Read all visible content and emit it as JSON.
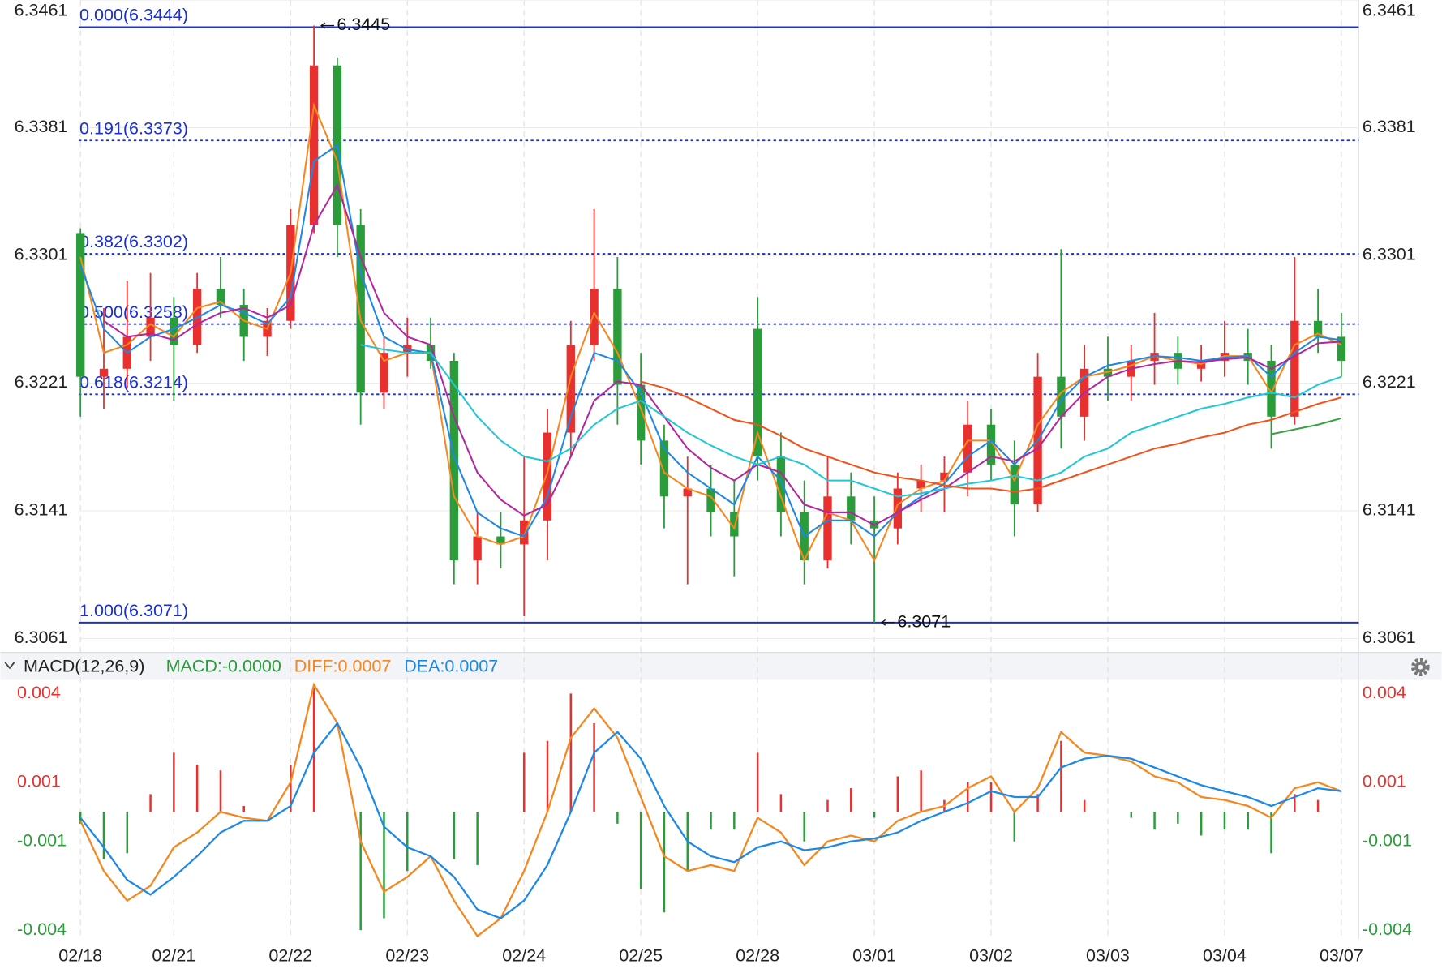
{
  "chart_data": [
    {
      "type": "candlestick",
      "categories": [
        "02/18",
        null,
        null,
        null,
        "02/21",
        null,
        null,
        null,
        null,
        "02/22",
        null,
        null,
        null,
        null,
        "02/23",
        null,
        null,
        null,
        null,
        "02/24",
        null,
        null,
        null,
        null,
        "02/25",
        null,
        null,
        null,
        null,
        "02/28",
        null,
        null,
        null,
        null,
        "03/01",
        null,
        null,
        null,
        null,
        "03/02",
        null,
        null,
        null,
        null,
        "03/03",
        null,
        null,
        null,
        null,
        "03/04",
        null,
        null,
        null,
        null,
        "03/07"
      ],
      "open": [
        6.3315,
        6.3225,
        6.323,
        6.325,
        6.3262,
        6.3245,
        6.328,
        6.327,
        6.325,
        6.326,
        6.332,
        6.342,
        6.332,
        6.3215,
        6.324,
        6.3245,
        6.3235,
        6.311,
        6.3125,
        6.312,
        6.3135,
        6.319,
        6.3245,
        6.328,
        6.322,
        6.3185,
        6.315,
        6.3155,
        6.314,
        6.3255,
        6.3175,
        6.314,
        6.311,
        6.315,
        6.3135,
        6.313,
        6.3155,
        6.316,
        6.3165,
        6.3195,
        6.317,
        6.3145,
        6.3225,
        6.32,
        6.323,
        6.3225,
        6.3235,
        6.324,
        6.323,
        6.3235,
        6.324,
        6.3235,
        6.32,
        6.326,
        6.325
      ],
      "high": [
        6.3318,
        6.3268,
        6.3285,
        6.329,
        6.3275,
        6.329,
        6.33,
        6.328,
        6.3268,
        6.333,
        6.3445,
        6.3425,
        6.333,
        6.325,
        6.3262,
        6.3262,
        6.324,
        6.314,
        6.314,
        6.3175,
        6.3205,
        6.326,
        6.333,
        6.33,
        6.324,
        6.3195,
        6.3175,
        6.317,
        6.316,
        6.3275,
        6.319,
        6.316,
        6.3175,
        6.3165,
        6.315,
        6.3165,
        6.317,
        6.3175,
        6.321,
        6.3205,
        6.3185,
        6.324,
        6.3305,
        6.3245,
        6.325,
        6.3245,
        6.3265,
        6.325,
        6.3245,
        6.326,
        6.3255,
        6.3245,
        6.33,
        6.328,
        6.3265
      ],
      "low": [
        6.32,
        6.3205,
        6.3218,
        6.3235,
        6.321,
        6.324,
        6.3262,
        6.3235,
        6.3238,
        6.3255,
        6.3315,
        6.33,
        6.3195,
        6.3205,
        6.3225,
        6.323,
        6.3095,
        6.3095,
        6.3105,
        6.3075,
        6.311,
        6.3175,
        6.3235,
        6.3195,
        6.317,
        6.313,
        6.3095,
        6.3125,
        6.31,
        6.316,
        6.3125,
        6.3095,
        6.3105,
        6.312,
        6.3071,
        6.312,
        6.314,
        6.314,
        6.315,
        6.316,
        6.3125,
        6.314,
        6.318,
        6.3185,
        6.321,
        6.321,
        6.322,
        6.322,
        6.3222,
        6.3225,
        6.322,
        6.318,
        6.3195,
        6.324,
        6.3225
      ],
      "close": [
        6.3225,
        6.323,
        6.325,
        6.3262,
        6.3245,
        6.328,
        6.327,
        6.325,
        6.326,
        6.332,
        6.342,
        6.332,
        6.3215,
        6.324,
        6.3245,
        6.3235,
        6.311,
        6.3125,
        6.312,
        6.3135,
        6.319,
        6.3245,
        6.328,
        6.322,
        6.3185,
        6.315,
        6.3155,
        6.314,
        6.3125,
        6.3175,
        6.314,
        6.311,
        6.315,
        6.3135,
        6.313,
        6.3155,
        6.316,
        6.3165,
        6.3195,
        6.317,
        6.3145,
        6.3225,
        6.32,
        6.323,
        6.3225,
        6.3235,
        6.324,
        6.323,
        6.3235,
        6.324,
        6.3235,
        6.32,
        6.326,
        6.325,
        6.3235
      ],
      "up_color": "#e8312f",
      "down_color": "#2a9d3a",
      "lines": [
        {
          "color": "#f5871f",
          "values": [
            6.33,
            6.324,
            6.3245,
            6.3258,
            6.325,
            6.3268,
            6.3272,
            6.326,
            6.3255,
            6.329,
            6.3395,
            6.336,
            6.326,
            6.3235,
            6.324,
            6.324,
            6.315,
            6.3125,
            6.312,
            6.3125,
            6.3165,
            6.3225,
            6.3265,
            6.324,
            6.3205,
            6.3165,
            6.3155,
            6.315,
            6.313,
            6.319,
            6.315,
            6.311,
            6.314,
            6.3135,
            6.311,
            6.3145,
            6.3155,
            6.316,
            6.3185,
            6.3185,
            6.316,
            6.3195,
            6.3215,
            6.3225,
            6.3228,
            6.3232,
            6.3238,
            6.3235,
            6.3233,
            6.3238,
            6.3238,
            6.3215,
            6.3245,
            6.3252,
            6.3245
          ]
        },
        {
          "color": "#1e88e5",
          "values": [
            6.3295,
            6.3255,
            6.324,
            6.325,
            6.3255,
            6.3262,
            6.327,
            6.3265,
            6.3258,
            6.3275,
            6.336,
            6.337,
            6.329,
            6.325,
            6.3242,
            6.324,
            6.3175,
            6.314,
            6.313,
            6.3125,
            6.315,
            6.32,
            6.324,
            6.3235,
            6.3215,
            6.318,
            6.3165,
            6.3155,
            6.3145,
            6.3175,
            6.316,
            6.3125,
            6.3135,
            6.3135,
            6.3125,
            6.314,
            6.315,
            6.3158,
            6.3175,
            6.3185,
            6.317,
            6.3185,
            6.321,
            6.3225,
            6.3232,
            6.3235,
            6.3238,
            6.3237,
            6.3235,
            6.3237,
            6.3238,
            6.3225,
            6.324,
            6.325,
            6.3248
          ]
        },
        {
          "color": "#b0279e",
          "values": [
            null,
            6.326,
            6.325,
            6.3252,
            6.3248,
            6.3258,
            6.3265,
            6.3268,
            6.3262,
            6.327,
            6.332,
            6.3345,
            6.33,
            6.3265,
            6.325,
            6.3245,
            6.32,
            6.3165,
            6.3148,
            6.3138,
            6.3145,
            6.3175,
            6.321,
            6.3222,
            6.322,
            6.32,
            6.318,
            6.3168,
            6.316,
            6.317,
            6.3165,
            6.3145,
            6.314,
            6.314,
            6.3132,
            6.314,
            6.3148,
            6.3155,
            6.3165,
            6.3175,
            6.3172,
            6.318,
            6.32,
            6.3215,
            6.3225,
            6.323,
            6.3233,
            6.3235,
            6.3234,
            6.3236,
            6.3237,
            6.323,
            6.3238,
            6.3246,
            6.3247
          ]
        },
        {
          "color": "#22c7d6",
          "values": [
            null,
            null,
            null,
            null,
            null,
            null,
            null,
            null,
            null,
            null,
            null,
            null,
            6.3245,
            6.3242,
            6.324,
            6.324,
            6.322,
            6.32,
            6.3185,
            6.3175,
            6.3172,
            6.318,
            6.3195,
            6.3205,
            6.321,
            6.32,
            6.319,
            6.3182,
            6.3175,
            6.317,
            6.3175,
            6.317,
            6.316,
            6.316,
            6.3155,
            6.315,
            6.3152,
            6.3155,
            6.3158,
            6.316,
            6.3163,
            6.316,
            6.3165,
            6.3175,
            6.318,
            6.319,
            6.3195,
            6.32,
            6.3205,
            6.3208,
            6.3212,
            6.3215,
            6.3212,
            6.322,
            6.3225
          ]
        },
        {
          "color": "#f0521c",
          "values": [
            null,
            null,
            null,
            null,
            null,
            null,
            null,
            null,
            null,
            null,
            null,
            null,
            null,
            null,
            null,
            null,
            null,
            null,
            null,
            null,
            null,
            null,
            null,
            null,
            6.3222,
            6.3218,
            6.3212,
            6.3205,
            6.3198,
            6.3195,
            6.3188,
            6.318,
            6.3175,
            6.317,
            6.3165,
            6.3162,
            6.316,
            6.3157,
            6.3155,
            6.3155,
            6.3153,
            6.3155,
            6.316,
            6.3165,
            6.317,
            6.3175,
            6.318,
            6.3183,
            6.3187,
            6.319,
            6.3195,
            6.3198,
            6.3203,
            6.3208,
            6.3212
          ]
        },
        {
          "color": "#3aa142",
          "values": [
            null,
            null,
            null,
            null,
            null,
            null,
            null,
            null,
            null,
            null,
            null,
            null,
            null,
            null,
            null,
            null,
            null,
            null,
            null,
            null,
            null,
            null,
            null,
            null,
            null,
            null,
            null,
            null,
            null,
            null,
            null,
            null,
            null,
            null,
            null,
            null,
            null,
            null,
            null,
            null,
            null,
            null,
            null,
            null,
            null,
            null,
            null,
            null,
            null,
            null,
            null,
            6.3189,
            6.3192,
            6.3195,
            6.3199
          ]
        }
      ],
      "levels": [
        {
          "label": "0.000(6.3444)",
          "value": 6.3444,
          "style": "solid"
        },
        {
          "label": "0.191(6.3373)",
          "value": 6.3373,
          "style": "dotted"
        },
        {
          "label": "0.382(6.3302)",
          "value": 6.3302,
          "style": "dotted"
        },
        {
          "label": "0.500(6.3258)",
          "value": 6.3258,
          "style": "dotted"
        },
        {
          "label": "0.618(6.3214)",
          "value": 6.3214,
          "style": "dotted"
        },
        {
          "label": "1.000(6.3071)",
          "value": 6.3071,
          "style": "solid"
        }
      ],
      "level_color": "#1a2fd6",
      "extremes": [
        {
          "value": 6.3445,
          "index": 10
        },
        {
          "value": 6.3071,
          "index": 34
        }
      ],
      "ylim": [
        6.3061,
        6.3461
      ],
      "yticks": [
        6.3061,
        6.3141,
        6.3221,
        6.3301,
        6.3381,
        6.3461
      ],
      "grid": true
    },
    {
      "type": "macd",
      "title": "MACD(12,26,9)",
      "readouts": [
        {
          "text": "MACD:-0.0000",
          "color": "#2a9d3a"
        },
        {
          "text": "DIFF:0.0007",
          "color": "#f5871f"
        },
        {
          "text": "DEA:0.0007",
          "color": "#1e88e5"
        }
      ],
      "histogram": {
        "up_color": "#e8312f",
        "down_color": "#2a9d3a",
        "values": [
          -0.0004,
          -0.0016,
          -0.0014,
          0.0006,
          0.002,
          0.0016,
          0.0014,
          0.0002,
          0.0,
          0.0016,
          0.0042,
          0.0,
          -0.004,
          -0.0036,
          -0.002,
          0.0,
          -0.0016,
          -0.0018,
          0.0,
          0.002,
          0.0024,
          0.004,
          0.003,
          -0.0004,
          -0.0026,
          -0.0034,
          -0.002,
          -0.0006,
          -0.0006,
          0.002,
          0.0006,
          -0.001,
          0.0004,
          0.0008,
          -0.0002,
          0.0012,
          0.0014,
          0.0004,
          0.001,
          0.001,
          -0.001,
          0.0006,
          0.0024,
          0.0004,
          0.0,
          -0.0002,
          -0.0006,
          -0.0004,
          -0.0008,
          -0.0006,
          -0.0006,
          -0.0014,
          0.0006,
          0.0004,
          0.0
        ]
      },
      "series": [
        {
          "color": "#f5871f",
          "values": [
            -0.0003,
            -0.002,
            -0.003,
            -0.0025,
            -0.0012,
            -0.0007,
            0.0,
            -0.0002,
            -0.0003,
            0.001,
            0.0043,
            0.003,
            -0.001,
            -0.0027,
            -0.0022,
            -0.0015,
            -0.003,
            -0.0042,
            -0.0036,
            -0.002,
            0.0,
            0.0025,
            0.0035,
            0.0025,
            0.0005,
            -0.0015,
            -0.002,
            -0.0018,
            -0.002,
            -0.0002,
            -0.0007,
            -0.0018,
            -0.001,
            -0.0008,
            -0.001,
            -0.0003,
            0.0,
            0.0002,
            0.0008,
            0.0012,
            0.0,
            0.0008,
            0.0027,
            0.002,
            0.0019,
            0.0017,
            0.0012,
            0.001,
            0.0005,
            0.0004,
            0.0002,
            -0.0002,
            0.0008,
            0.001,
            0.0007
          ]
        },
        {
          "color": "#1e88e5",
          "values": [
            -0.0002,
            -0.0012,
            -0.0023,
            -0.0028,
            -0.0022,
            -0.0015,
            -0.0007,
            -0.0003,
            -0.0003,
            0.0002,
            0.002,
            0.003,
            0.0015,
            -0.0005,
            -0.0012,
            -0.0015,
            -0.0022,
            -0.0033,
            -0.0036,
            -0.003,
            -0.0018,
            0.0,
            0.002,
            0.0027,
            0.0018,
            0.0002,
            -0.001,
            -0.0015,
            -0.0017,
            -0.0012,
            -0.001,
            -0.0013,
            -0.0012,
            -0.001,
            -0.0009,
            -0.0007,
            -0.0003,
            0.0,
            0.0003,
            0.0007,
            0.0005,
            0.0005,
            0.0015,
            0.0018,
            0.0019,
            0.0018,
            0.0015,
            0.0012,
            0.0009,
            0.0007,
            0.0005,
            0.0002,
            0.0005,
            0.0008,
            0.0007
          ]
        }
      ],
      "ylim": [
        -0.0043,
        0.0044
      ],
      "yticks": [
        0.004,
        0.001,
        -0.001,
        -0.004
      ],
      "up_tick_color": "#e8312f",
      "down_tick_color": "#2a9d3a"
    }
  ]
}
